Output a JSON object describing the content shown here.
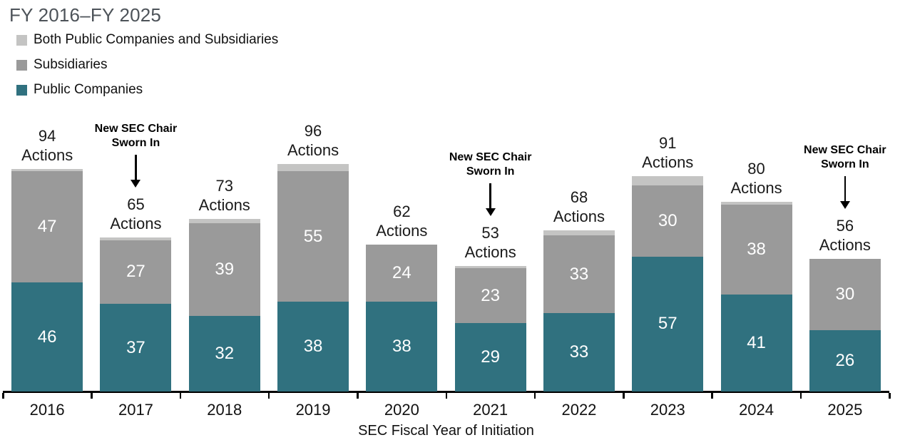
{
  "title": "FY 2016–FY 2025",
  "legend": {
    "items": [
      {
        "label": "Both Public Companies and Subsidiaries",
        "color_key": "both"
      },
      {
        "label": "Subsidiaries",
        "color_key": "subsidiaries"
      },
      {
        "label": "Public Companies",
        "color_key": "public_companies"
      }
    ]
  },
  "xaxis_title": "SEC Fiscal Year of Initiation",
  "total_suffix": "Actions",
  "annotation_label": {
    "line1": "New SEC Chair",
    "line2": "Sworn In"
  },
  "colors": {
    "public_companies": "#30717F",
    "subsidiaries": "#9A9A9A",
    "both": "#C4C4C3",
    "title_text": "#4D5359",
    "body_text": "#1A1A1A",
    "axis": "#000000",
    "segment_value_text": "#FFFFFF"
  },
  "chart_data": {
    "type": "bar",
    "stacked": true,
    "title": "FY 2016–FY 2025",
    "xlabel": "SEC Fiscal Year of Initiation",
    "ylabel": "",
    "ylim": [
      0,
      100
    ],
    "grid": false,
    "legend_position": "top-left",
    "categories": [
      "2016",
      "2017",
      "2018",
      "2019",
      "2020",
      "2021",
      "2022",
      "2023",
      "2024",
      "2025"
    ],
    "series": [
      {
        "name": "Public Companies",
        "values": [
          46,
          37,
          32,
          38,
          38,
          29,
          33,
          57,
          41,
          26
        ]
      },
      {
        "name": "Subsidiaries",
        "values": [
          47,
          27,
          39,
          55,
          24,
          23,
          33,
          30,
          38,
          30
        ]
      },
      {
        "name": "Both Public Companies and Subsidiaries",
        "values": [
          1,
          1,
          2,
          3,
          0,
          1,
          2,
          4,
          1,
          0
        ]
      }
    ],
    "totals": [
      94,
      65,
      73,
      96,
      62,
      53,
      68,
      91,
      80,
      56
    ],
    "total_labels": [
      "94 Actions",
      "65 Actions",
      "73 Actions",
      "96 Actions",
      "62 Actions",
      "53 Actions",
      "68 Actions",
      "91 Actions",
      "80 Actions",
      "56 Actions"
    ],
    "segment_labels_shown": [
      "Public Companies",
      "Subsidiaries"
    ],
    "annotations": [
      {
        "category": "2017",
        "text": "New SEC Chair Sworn In"
      },
      {
        "category": "2021",
        "text": "New SEC Chair Sworn In"
      },
      {
        "category": "2025",
        "text": "New SEC Chair Sworn In"
      }
    ]
  }
}
